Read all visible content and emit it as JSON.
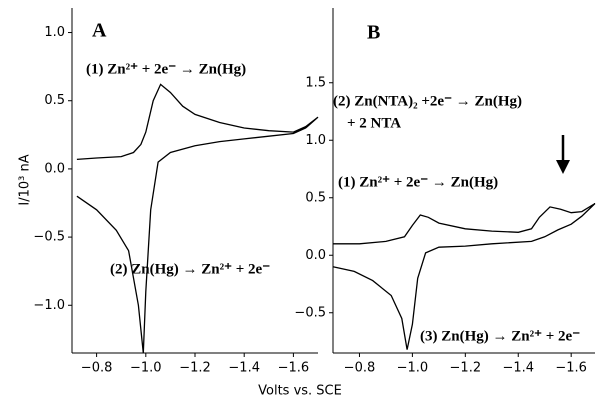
{
  "chart_data": [
    {
      "type": "line",
      "title": "A",
      "ylabel": "I/10³ nA",
      "xlabel": "Volts vs. SCE",
      "color": "#000000",
      "x": [
        -0.72,
        -0.8,
        -0.9,
        -0.95,
        -0.98,
        -1.0,
        -1.03,
        -1.06,
        -1.1,
        -1.15,
        -1.2,
        -1.3,
        -1.4,
        -1.5,
        -1.6,
        -1.65,
        -1.7,
        -1.65,
        -1.6,
        -1.5,
        -1.4,
        -1.3,
        -1.2,
        -1.1,
        -1.05,
        -1.02,
        -1.0,
        -0.99,
        -0.97,
        -0.93,
        -0.88,
        -0.8,
        -0.72
      ],
      "values": [
        0.07,
        0.08,
        0.09,
        0.12,
        0.18,
        0.27,
        0.5,
        0.62,
        0.56,
        0.46,
        0.4,
        0.34,
        0.3,
        0.28,
        0.27,
        0.31,
        0.38,
        0.3,
        0.26,
        0.24,
        0.22,
        0.2,
        0.17,
        0.12,
        0.05,
        -0.3,
        -0.9,
        -1.35,
        -1.0,
        -0.6,
        -0.45,
        -0.3,
        -0.2
      ],
      "xlim": [
        -0.7,
        -1.7
      ],
      "ylim": [
        -1.35,
        1.18
      ],
      "xticks": [
        {
          "value": -0.8,
          "label": "−0.8"
        },
        {
          "value": -1.0,
          "label": "−1.0"
        },
        {
          "value": -1.2,
          "label": "−1.2"
        },
        {
          "value": -1.4,
          "label": "−1.4"
        },
        {
          "value": -1.6,
          "label": "−1.6"
        }
      ],
      "yticks": [
        {
          "value": -1.0,
          "label": "−1.0"
        },
        {
          "value": -0.5,
          "label": "−0.5"
        },
        {
          "value": 0.0,
          "label": "0.0"
        },
        {
          "value": 0.5,
          "label": "0.5"
        },
        {
          "value": 1.0,
          "label": "1.0"
        }
      ],
      "annotations": [
        "(1) Zn²⁺ + 2e⁻ → Zn(Hg)",
        "(2) Zn(Hg) → Zn²⁺ + 2e⁻"
      ]
    },
    {
      "type": "line",
      "title": "B",
      "color": "#000000",
      "x": [
        -0.7,
        -0.8,
        -0.9,
        -0.97,
        -1.0,
        -1.03,
        -1.06,
        -1.1,
        -1.2,
        -1.3,
        -1.4,
        -1.45,
        -1.48,
        -1.52,
        -1.56,
        -1.6,
        -1.64,
        -1.69,
        -1.64,
        -1.6,
        -1.55,
        -1.5,
        -1.45,
        -1.3,
        -1.2,
        -1.1,
        -1.05,
        -1.02,
        -1.0,
        -0.98,
        -0.96,
        -0.92,
        -0.85,
        -0.78,
        -0.7
      ],
      "values": [
        0.1,
        0.1,
        0.12,
        0.16,
        0.26,
        0.35,
        0.33,
        0.28,
        0.23,
        0.21,
        0.2,
        0.23,
        0.33,
        0.42,
        0.4,
        0.37,
        0.38,
        0.45,
        0.34,
        0.27,
        0.22,
        0.16,
        0.12,
        0.1,
        0.08,
        0.07,
        0.02,
        -0.2,
        -0.6,
        -0.82,
        -0.55,
        -0.35,
        -0.22,
        -0.14,
        -0.1
      ],
      "xlim": [
        -0.7,
        -1.69
      ],
      "ylim": [
        -0.85,
        2.15
      ],
      "xticks": [
        {
          "value": -0.8,
          "label": "−0.8"
        },
        {
          "value": -1.0,
          "label": "−1.0"
        },
        {
          "value": -1.2,
          "label": "−1.2"
        },
        {
          "value": -1.4,
          "label": "−1.4"
        },
        {
          "value": -1.6,
          "label": "−1.6"
        }
      ],
      "yticks": [
        {
          "value": -0.5,
          "label": "−0.5"
        },
        {
          "value": 0.0,
          "label": "0.0"
        },
        {
          "value": 0.5,
          "label": "0.5"
        },
        {
          "value": 1.0,
          "label": "1.0"
        },
        {
          "value": 1.5,
          "label": "1.5"
        }
      ],
      "annotations": [
        "(2) Zn(NTA)₂ +2e⁻ → Zn(Hg)",
        "+ 2 NTA",
        "(1) Zn²⁺ + 2e⁻ → Zn(Hg)",
        "(3) Zn(Hg) → Zn²⁺ + 2e⁻"
      ]
    }
  ]
}
